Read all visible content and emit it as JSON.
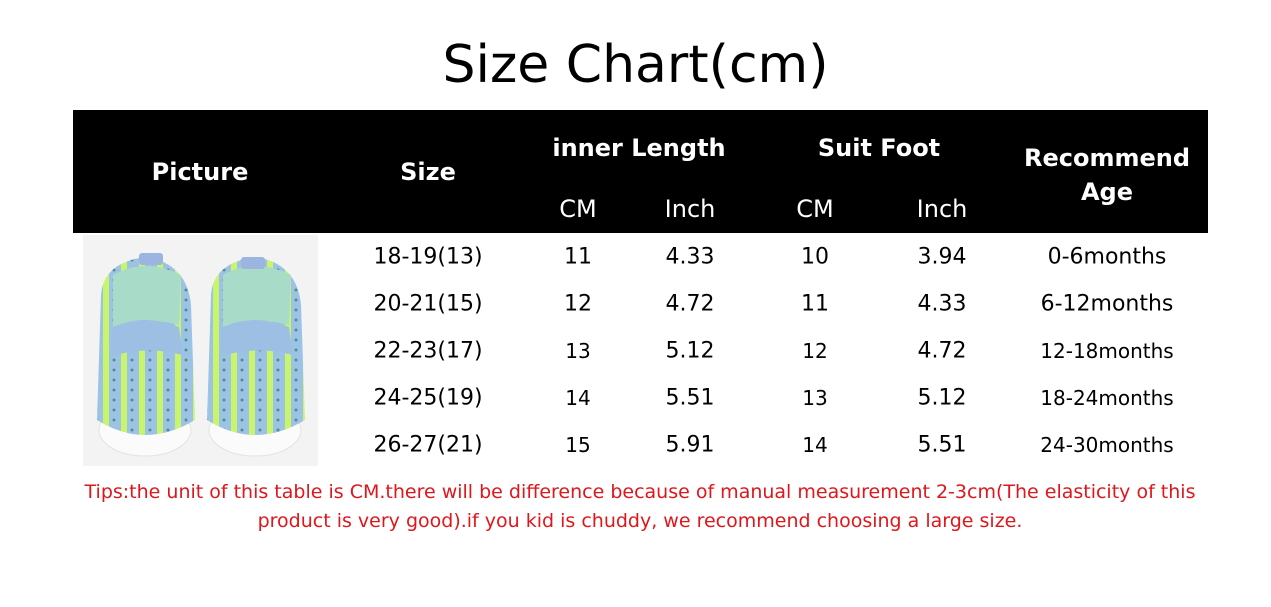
{
  "title": "Size Chart(cm)",
  "header": {
    "picture": "Picture",
    "size": "Size",
    "inner_length": "inner Length",
    "suit_foot": "Suit Foot",
    "recommend_age": "Recommend Age",
    "cm": "CM",
    "inch": "Inch"
  },
  "rows": [
    {
      "size": "18-19(13)",
      "inner_cm": "11",
      "inner_inch": "4.33",
      "foot_cm": "10",
      "foot_inch": "3.94",
      "age": "0-6months"
    },
    {
      "size": "20-21(15)",
      "inner_cm": "12",
      "inner_inch": "4.72",
      "foot_cm": "11",
      "foot_inch": "4.33",
      "age": "6-12months"
    },
    {
      "size": "22-23(17)",
      "inner_cm": "13",
      "inner_inch": "5.12",
      "foot_cm": "12",
      "foot_inch": "4.72",
      "age": "12-18months"
    },
    {
      "size": "24-25(19)",
      "inner_cm": "14",
      "inner_inch": "5.51",
      "foot_cm": "13",
      "foot_inch": "5.12",
      "age": "18-24months"
    },
    {
      "size": "26-27(21)",
      "inner_cm": "15",
      "inner_inch": "5.91",
      "foot_cm": "14",
      "foot_inch": "5.51",
      "age": "24-30months"
    }
  ],
  "tips": "Tips:the unit of this table is CM.there will be difference because of manual measurement 2-3cm(The elasticity of this product is very good).if you kid is chuddy, we recommend choosing a large size.",
  "colors": {
    "header_bg": "#000000",
    "tips": "#e0161b",
    "shoe_blue": "#9cc3e6",
    "shoe_stripe": "#c8f56a"
  }
}
